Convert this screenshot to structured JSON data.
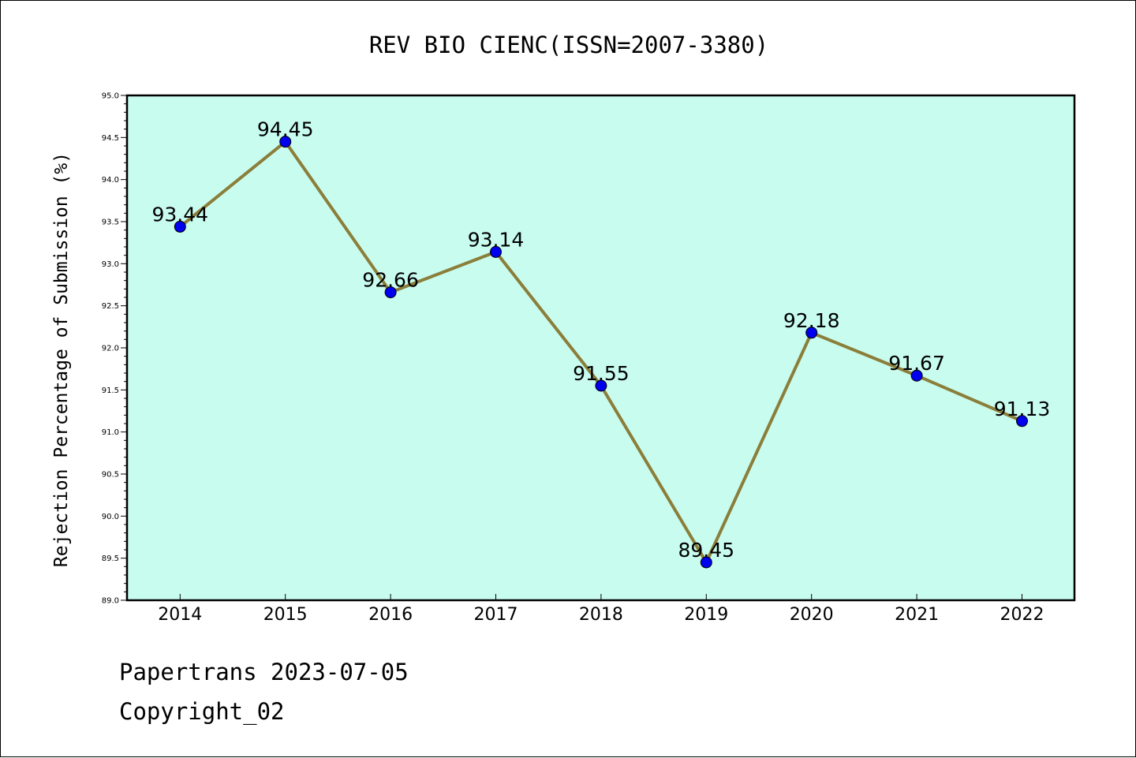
{
  "chart_data": {
    "type": "line",
    "title": "REV BIO CIENC(ISSN=2007-3380)",
    "xlabel": "",
    "ylabel": "Rejection Percentage of Submission (%)",
    "categories": [
      "2014",
      "2015",
      "2016",
      "2017",
      "2018",
      "2019",
      "2020",
      "2021",
      "2022"
    ],
    "series": [
      {
        "values": [
          93.44,
          94.45,
          92.66,
          93.14,
          91.55,
          89.45,
          92.18,
          91.67,
          91.13
        ],
        "data_labels": [
          "93.44",
          "94.45",
          "92.66",
          "93.14",
          "91.55",
          "89.45",
          "92.18",
          "91.67",
          "91.13"
        ]
      }
    ],
    "ylim": [
      89.0,
      95.0
    ],
    "yticks": [
      "89.0",
      "89.5",
      "90.0",
      "90.5",
      "91.0",
      "91.5",
      "92.0",
      "92.5",
      "93.0",
      "93.5",
      "94.0",
      "94.5",
      "95.0"
    ],
    "grid": false,
    "colors": {
      "plot_background": "#c8fcee",
      "line": "#8b7e3a",
      "marker": "#0000ee"
    }
  },
  "footer": {
    "line1": "Papertrans 2023-07-05",
    "line2": "Copyright_02"
  }
}
